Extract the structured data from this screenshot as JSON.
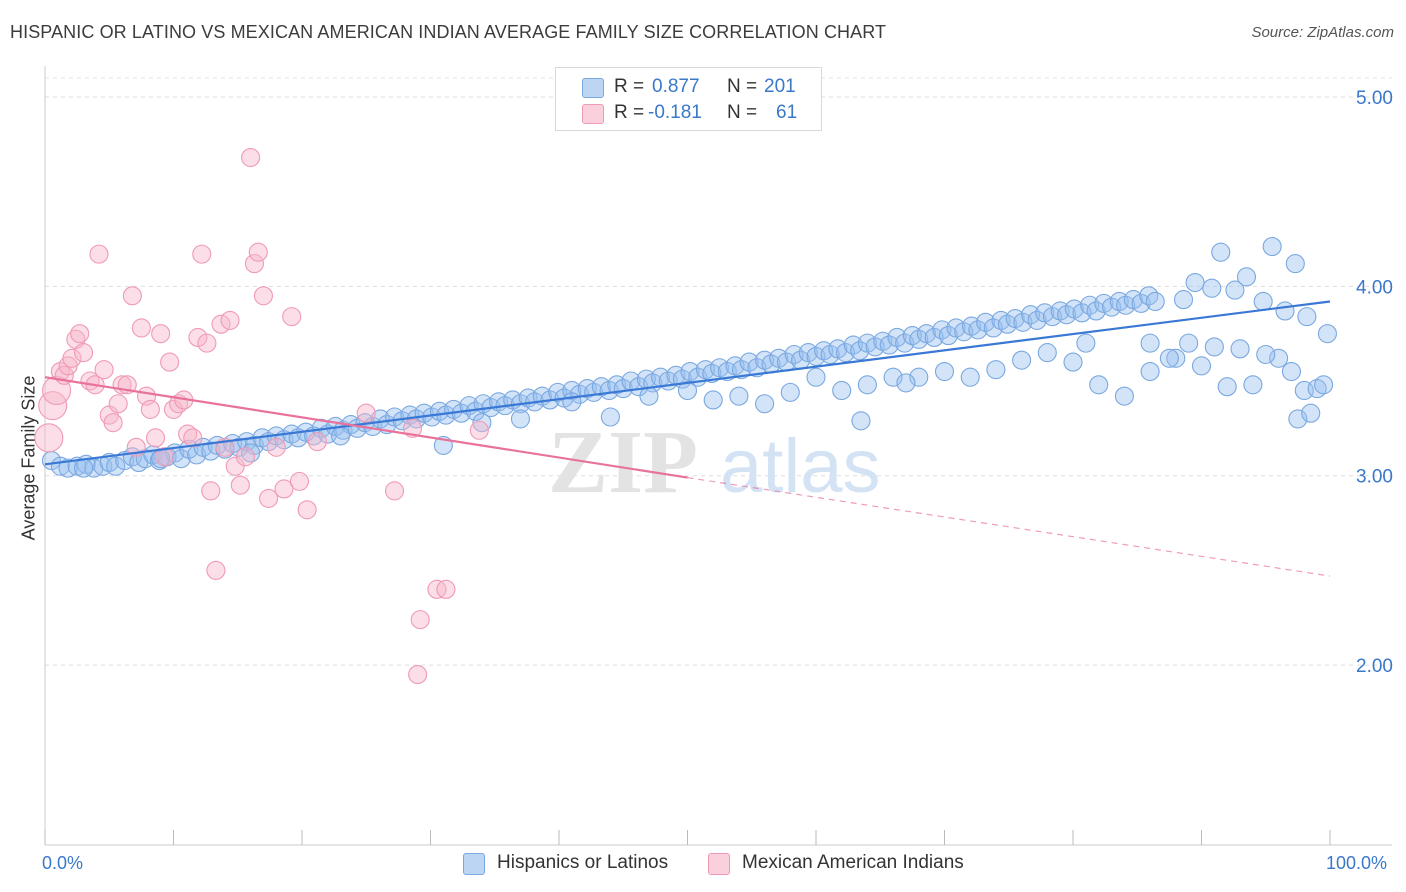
{
  "title": "HISPANIC OR LATINO VS MEXICAN AMERICAN INDIAN AVERAGE FAMILY SIZE CORRELATION CHART",
  "source": "Source: ZipAtlas.com",
  "watermark": {
    "zip": "ZIP",
    "atlas": "atlas"
  },
  "legend": {
    "rows": [
      {
        "r_label": "R =",
        "r_value": "0.877",
        "n_label": "N =",
        "n_value": "201",
        "color": "#a8c8f0"
      },
      {
        "r_label": "R =",
        "r_value": "-0.181",
        "n_label": "N =",
        "n_value": "61",
        "color": "#f7b6c9"
      }
    ]
  },
  "bottom_legend": [
    {
      "label": "Hispanics or Latinos",
      "color": "#a8c8f0"
    },
    {
      "label": "Mexican American Indians",
      "color": "#f7b6c9"
    }
  ],
  "chart_data": {
    "type": "scatter",
    "ylabel": "Average Family Size",
    "x_tick_labels": [
      "0.0%",
      "100.0%"
    ],
    "y_tick_labels": [
      "2.00",
      "3.00",
      "4.00",
      "5.00"
    ],
    "y_ticks": [
      2.0,
      3.0,
      4.0,
      5.0
    ],
    "xlim": [
      0,
      100
    ],
    "ylim": [
      1.05,
      5.1
    ],
    "grid": true,
    "colors": {
      "blue": "#6fa3e3",
      "blue_line": "#3a78d6",
      "pink": "#f09ab5",
      "pink_line": "#e8729b",
      "axis_label": "#3a78c9"
    },
    "series": [
      {
        "name": "Hispanics or Latinos",
        "color": "#6fa3e3",
        "trend": {
          "x": [
            0,
            100
          ],
          "y": [
            3.06,
            3.92
          ]
        },
        "points": [
          [
            0.5,
            3.08
          ],
          [
            1.2,
            3.05
          ],
          [
            1.8,
            3.04
          ],
          [
            2.5,
            3.05
          ],
          [
            3.2,
            3.06
          ],
          [
            3.8,
            3.04
          ],
          [
            4.5,
            3.05
          ],
          [
            5.0,
            3.07
          ],
          [
            5.5,
            3.05
          ],
          [
            6.2,
            3.08
          ],
          [
            6.8,
            3.1
          ],
          [
            7.3,
            3.07
          ],
          [
            7.8,
            3.09
          ],
          [
            8.4,
            3.11
          ],
          [
            8.9,
            3.08
          ],
          [
            9.5,
            3.1
          ],
          [
            10.1,
            3.12
          ],
          [
            10.6,
            3.09
          ],
          [
            11.2,
            3.14
          ],
          [
            11.8,
            3.11
          ],
          [
            12.3,
            3.15
          ],
          [
            12.9,
            3.13
          ],
          [
            13.4,
            3.16
          ],
          [
            14.0,
            3.14
          ],
          [
            14.6,
            3.17
          ],
          [
            15.1,
            3.15
          ],
          [
            15.7,
            3.18
          ],
          [
            16.3,
            3.16
          ],
          [
            16.9,
            3.2
          ],
          [
            17.4,
            3.18
          ],
          [
            18.0,
            3.21
          ],
          [
            18.6,
            3.19
          ],
          [
            19.2,
            3.22
          ],
          [
            19.7,
            3.2
          ],
          [
            20.3,
            3.23
          ],
          [
            20.9,
            3.21
          ],
          [
            21.5,
            3.25
          ],
          [
            22.0,
            3.22
          ],
          [
            22.6,
            3.26
          ],
          [
            23.2,
            3.24
          ],
          [
            23.8,
            3.27
          ],
          [
            24.3,
            3.25
          ],
          [
            24.9,
            3.28
          ],
          [
            25.5,
            3.26
          ],
          [
            26.1,
            3.3
          ],
          [
            26.6,
            3.27
          ],
          [
            27.2,
            3.31
          ],
          [
            27.8,
            3.29
          ],
          [
            28.4,
            3.32
          ],
          [
            28.9,
            3.3
          ],
          [
            29.5,
            3.33
          ],
          [
            30.1,
            3.31
          ],
          [
            30.7,
            3.34
          ],
          [
            31.2,
            3.32
          ],
          [
            31.8,
            3.35
          ],
          [
            32.4,
            3.33
          ],
          [
            33.0,
            3.37
          ],
          [
            33.5,
            3.34
          ],
          [
            34.1,
            3.38
          ],
          [
            34.7,
            3.36
          ],
          [
            35.3,
            3.39
          ],
          [
            35.8,
            3.37
          ],
          [
            36.4,
            3.4
          ],
          [
            37.0,
            3.38
          ],
          [
            37.6,
            3.41
          ],
          [
            38.1,
            3.39
          ],
          [
            38.7,
            3.42
          ],
          [
            39.3,
            3.4
          ],
          [
            39.9,
            3.44
          ],
          [
            40.4,
            3.41
          ],
          [
            41.0,
            3.45
          ],
          [
            41.6,
            3.43
          ],
          [
            42.2,
            3.46
          ],
          [
            42.7,
            3.44
          ],
          [
            43.3,
            3.47
          ],
          [
            43.9,
            3.45
          ],
          [
            44.5,
            3.48
          ],
          [
            45.0,
            3.46
          ],
          [
            45.6,
            3.5
          ],
          [
            46.2,
            3.47
          ],
          [
            46.8,
            3.51
          ],
          [
            47.3,
            3.49
          ],
          [
            47.9,
            3.52
          ],
          [
            48.5,
            3.5
          ],
          [
            49.1,
            3.53
          ],
          [
            49.6,
            3.51
          ],
          [
            50.2,
            3.55
          ],
          [
            50.8,
            3.52
          ],
          [
            51.4,
            3.56
          ],
          [
            51.9,
            3.54
          ],
          [
            52.5,
            3.57
          ],
          [
            53.1,
            3.55
          ],
          [
            53.7,
            3.58
          ],
          [
            54.2,
            3.56
          ],
          [
            54.8,
            3.6
          ],
          [
            55.4,
            3.57
          ],
          [
            56.0,
            3.61
          ],
          [
            56.5,
            3.59
          ],
          [
            57.1,
            3.62
          ],
          [
            57.7,
            3.6
          ],
          [
            58.3,
            3.64
          ],
          [
            58.8,
            3.61
          ],
          [
            59.4,
            3.65
          ],
          [
            60.0,
            3.63
          ],
          [
            60.6,
            3.66
          ],
          [
            61.1,
            3.64
          ],
          [
            61.7,
            3.67
          ],
          [
            62.3,
            3.65
          ],
          [
            62.9,
            3.69
          ],
          [
            63.4,
            3.66
          ],
          [
            64.0,
            3.7
          ],
          [
            64.6,
            3.68
          ],
          [
            65.2,
            3.71
          ],
          [
            65.7,
            3.69
          ],
          [
            66.3,
            3.73
          ],
          [
            66.9,
            3.7
          ],
          [
            67.5,
            3.74
          ],
          [
            68.0,
            3.72
          ],
          [
            68.6,
            3.75
          ],
          [
            69.2,
            3.73
          ],
          [
            69.8,
            3.77
          ],
          [
            70.3,
            3.74
          ],
          [
            70.9,
            3.78
          ],
          [
            71.5,
            3.76
          ],
          [
            72.1,
            3.79
          ],
          [
            72.6,
            3.77
          ],
          [
            73.2,
            3.81
          ],
          [
            73.8,
            3.78
          ],
          [
            74.4,
            3.82
          ],
          [
            74.9,
            3.8
          ],
          [
            75.5,
            3.83
          ],
          [
            76.1,
            3.81
          ],
          [
            76.7,
            3.85
          ],
          [
            77.2,
            3.82
          ],
          [
            77.8,
            3.86
          ],
          [
            78.4,
            3.84
          ],
          [
            79.0,
            3.87
          ],
          [
            79.5,
            3.85
          ],
          [
            80.1,
            3.88
          ],
          [
            80.7,
            3.86
          ],
          [
            81.3,
            3.9
          ],
          [
            81.8,
            3.87
          ],
          [
            82.4,
            3.91
          ],
          [
            83.0,
            3.89
          ],
          [
            83.6,
            3.92
          ],
          [
            84.1,
            3.9
          ],
          [
            84.7,
            3.93
          ],
          [
            85.3,
            3.91
          ],
          [
            85.9,
            3.95
          ],
          [
            86.4,
            3.92
          ],
          [
            3.0,
            3.04
          ],
          [
            9.0,
            3.09
          ],
          [
            16.0,
            3.12
          ],
          [
            23.0,
            3.21
          ],
          [
            31.0,
            3.16
          ],
          [
            34.0,
            3.28
          ],
          [
            37.0,
            3.3
          ],
          [
            41.0,
            3.39
          ],
          [
            44.0,
            3.31
          ],
          [
            47.0,
            3.42
          ],
          [
            50.0,
            3.45
          ],
          [
            52.0,
            3.4
          ],
          [
            54.0,
            3.42
          ],
          [
            56.0,
            3.38
          ],
          [
            58.0,
            3.44
          ],
          [
            60.0,
            3.52
          ],
          [
            62.0,
            3.45
          ],
          [
            64.0,
            3.48
          ],
          [
            66.0,
            3.52
          ],
          [
            68.0,
            3.52
          ],
          [
            70.0,
            3.55
          ],
          [
            72.0,
            3.52
          ],
          [
            74.0,
            3.56
          ],
          [
            76.0,
            3.61
          ],
          [
            78.0,
            3.65
          ],
          [
            80.0,
            3.6
          ],
          [
            82.0,
            3.48
          ],
          [
            84.0,
            3.42
          ],
          [
            86.0,
            3.55
          ],
          [
            88.0,
            3.62
          ],
          [
            90.0,
            3.58
          ],
          [
            92.0,
            3.47
          ],
          [
            94.0,
            3.48
          ],
          [
            96.0,
            3.62
          ],
          [
            98.0,
            3.45
          ],
          [
            97.5,
            3.3
          ],
          [
            99.0,
            3.46
          ],
          [
            99.8,
            3.75
          ],
          [
            88.6,
            3.93
          ],
          [
            90.8,
            3.99
          ],
          [
            92.6,
            3.98
          ],
          [
            94.8,
            3.92
          ],
          [
            96.5,
            3.87
          ],
          [
            98.2,
            3.84
          ],
          [
            89.5,
            4.02
          ],
          [
            91.5,
            4.18
          ],
          [
            93.5,
            4.05
          ],
          [
            95.5,
            4.21
          ],
          [
            97.3,
            4.12
          ],
          [
            63.5,
            3.29
          ],
          [
            67.0,
            3.49
          ],
          [
            86.0,
            3.7
          ],
          [
            87.5,
            3.62
          ],
          [
            89.0,
            3.7
          ],
          [
            91.0,
            3.68
          ],
          [
            93.0,
            3.67
          ],
          [
            95.0,
            3.64
          ],
          [
            97.0,
            3.55
          ],
          [
            98.5,
            3.33
          ],
          [
            99.5,
            3.48
          ],
          [
            81.0,
            3.7
          ]
        ]
      },
      {
        "name": "Mexican American Indians",
        "color": "#f09ab5",
        "trend": {
          "x": [
            0,
            50
          ],
          "y": [
            3.52,
            2.99
          ],
          "dashed_to": {
            "x": 100,
            "y": 2.47
          }
        },
        "points": [
          [
            0.3,
            3.2
          ],
          [
            0.6,
            3.37
          ],
          [
            0.9,
            3.45
          ],
          [
            1.2,
            3.55
          ],
          [
            1.5,
            3.53
          ],
          [
            1.8,
            3.58
          ],
          [
            2.1,
            3.62
          ],
          [
            2.4,
            3.72
          ],
          [
            2.7,
            3.75
          ],
          [
            3.0,
            3.65
          ],
          [
            3.5,
            3.5
          ],
          [
            3.9,
            3.48
          ],
          [
            4.2,
            4.17
          ],
          [
            4.6,
            3.56
          ],
          [
            5.0,
            3.32
          ],
          [
            5.3,
            3.28
          ],
          [
            5.7,
            3.38
          ],
          [
            6.0,
            3.48
          ],
          [
            6.4,
            3.48
          ],
          [
            6.8,
            3.95
          ],
          [
            7.1,
            3.15
          ],
          [
            7.5,
            3.78
          ],
          [
            7.9,
            3.42
          ],
          [
            8.2,
            3.35
          ],
          [
            8.6,
            3.2
          ],
          [
            9.0,
            3.75
          ],
          [
            9.3,
            3.1
          ],
          [
            9.7,
            3.6
          ],
          [
            10.0,
            3.35
          ],
          [
            10.4,
            3.38
          ],
          [
            10.8,
            3.4
          ],
          [
            11.1,
            3.22
          ],
          [
            11.5,
            3.2
          ],
          [
            11.9,
            3.73
          ],
          [
            12.2,
            4.17
          ],
          [
            12.6,
            3.7
          ],
          [
            12.9,
            2.92
          ],
          [
            13.3,
            2.5
          ],
          [
            13.7,
            3.8
          ],
          [
            14.0,
            3.15
          ],
          [
            14.4,
            3.82
          ],
          [
            14.8,
            3.05
          ],
          [
            15.2,
            2.95
          ],
          [
            15.6,
            3.1
          ],
          [
            16.0,
            4.68
          ],
          [
            16.3,
            4.12
          ],
          [
            16.6,
            4.18
          ],
          [
            17.0,
            3.95
          ],
          [
            17.4,
            2.88
          ],
          [
            18.0,
            3.15
          ],
          [
            18.6,
            2.93
          ],
          [
            19.2,
            3.84
          ],
          [
            19.8,
            2.97
          ],
          [
            20.4,
            2.82
          ],
          [
            21.2,
            3.18
          ],
          [
            25.0,
            3.33
          ],
          [
            27.2,
            2.92
          ],
          [
            28.6,
            3.25
          ],
          [
            29.2,
            2.24
          ],
          [
            29.0,
            1.95
          ],
          [
            30.5,
            2.4
          ],
          [
            31.2,
            2.4
          ],
          [
            33.8,
            3.24
          ]
        ]
      }
    ]
  }
}
